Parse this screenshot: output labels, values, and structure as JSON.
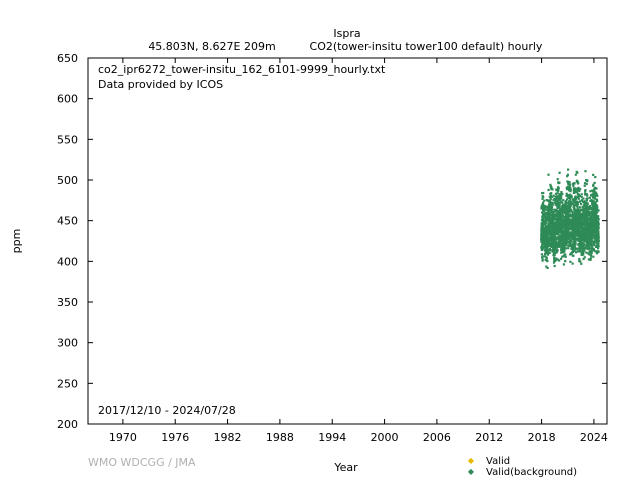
{
  "header": {
    "station": "Ispra",
    "location": "45.803N, 8.627E 209m",
    "description": "CO2(tower-insitu tower100 default) hourly"
  },
  "plot_info": {
    "filename": "co2_ipr6272_tower-insitu_162_6101-9999_hourly.txt",
    "provider": "Data provided by ICOS",
    "date_range": "2017/12/10 - 2024/07/28"
  },
  "footer": {
    "credit": "WMO WDCGG / JMA"
  },
  "colors": {
    "valid": "#e6b800",
    "valid_background": "#2e8b57"
  },
  "chart_data": {
    "type": "scatter",
    "xlabel": "Year",
    "ylabel": "ppm",
    "xlim": [
      1966,
      2025.5
    ],
    "ylim": [
      200,
      650
    ],
    "x_ticks": [
      1970,
      1976,
      1982,
      1988,
      1994,
      2000,
      2006,
      2012,
      2018,
      2024
    ],
    "y_ticks": [
      200,
      250,
      300,
      350,
      400,
      450,
      500,
      550,
      600,
      650
    ],
    "grid": false,
    "legend_position": "bottom-right",
    "series": [
      {
        "name": "Valid",
        "color": "#e6b800",
        "values": []
      },
      {
        "name": "Valid(background)",
        "color": "#2e8b57",
        "envelope": [
          {
            "x": 2017.95,
            "min": 412,
            "max": 468
          },
          {
            "x": 2018.1,
            "min": 400,
            "max": 505
          },
          {
            "x": 2018.3,
            "min": 396,
            "max": 490
          },
          {
            "x": 2018.5,
            "min": 388,
            "max": 482
          },
          {
            "x": 2018.7,
            "min": 390,
            "max": 498
          },
          {
            "x": 2018.85,
            "min": 395,
            "max": 520
          },
          {
            "x": 2019.0,
            "min": 402,
            "max": 512
          },
          {
            "x": 2019.2,
            "min": 398,
            "max": 495
          },
          {
            "x": 2019.45,
            "min": 388,
            "max": 480
          },
          {
            "x": 2019.7,
            "min": 391,
            "max": 500
          },
          {
            "x": 2019.9,
            "min": 398,
            "max": 512
          },
          {
            "x": 2020.1,
            "min": 404,
            "max": 510
          },
          {
            "x": 2020.35,
            "min": 396,
            "max": 488
          },
          {
            "x": 2020.6,
            "min": 393,
            "max": 484
          },
          {
            "x": 2020.85,
            "min": 400,
            "max": 505
          },
          {
            "x": 2021.0,
            "min": 405,
            "max": 515
          },
          {
            "x": 2021.2,
            "min": 402,
            "max": 520
          },
          {
            "x": 2021.45,
            "min": 395,
            "max": 490
          },
          {
            "x": 2021.7,
            "min": 396,
            "max": 502
          },
          {
            "x": 2021.95,
            "min": 402,
            "max": 520
          },
          {
            "x": 2022.15,
            "min": 404,
            "max": 514
          },
          {
            "x": 2022.4,
            "min": 398,
            "max": 492
          },
          {
            "x": 2022.65,
            "min": 396,
            "max": 488
          },
          {
            "x": 2022.9,
            "min": 402,
            "max": 508
          },
          {
            "x": 2023.1,
            "min": 408,
            "max": 515
          },
          {
            "x": 2023.35,
            "min": 402,
            "max": 494
          },
          {
            "x": 2023.6,
            "min": 398,
            "max": 488
          },
          {
            "x": 2023.85,
            "min": 404,
            "max": 505
          },
          {
            "x": 2024.05,
            "min": 407,
            "max": 516
          },
          {
            "x": 2024.3,
            "min": 404,
            "max": 500
          },
          {
            "x": 2024.55,
            "min": 405,
            "max": 470
          }
        ]
      }
    ]
  }
}
